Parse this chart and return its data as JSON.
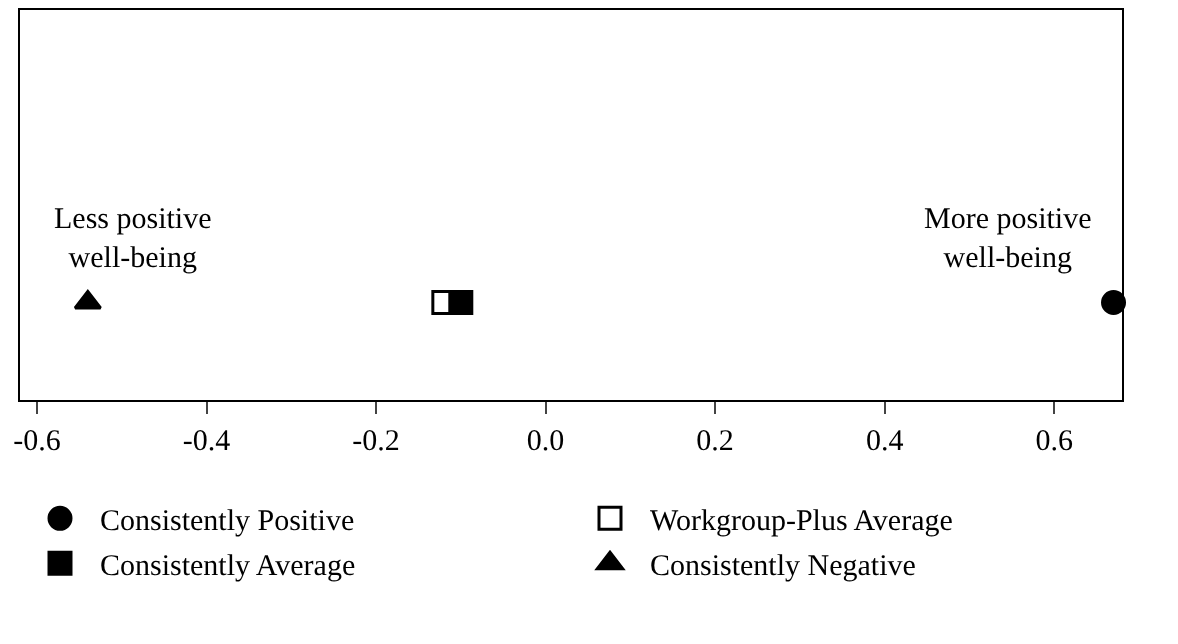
{
  "chart_data": {
    "type": "scatter",
    "orientation": "horizontal",
    "categories": [
      null
    ],
    "tick_labels": "x",
    "xlim": [
      -0.62,
      0.68
    ],
    "xticks": [
      {
        "value": -0.6,
        "label": "-0.6"
      },
      {
        "value": -0.4,
        "label": "-0.4"
      },
      {
        "value": -0.2,
        "label": "-0.2"
      },
      {
        "value": 0,
        "label": "0.0"
      },
      {
        "value": 0.2,
        "label": "0.2"
      },
      {
        "value": 0.4,
        "label": "0.4"
      },
      {
        "value": 0.6,
        "label": "0.6"
      }
    ],
    "legend": "bottom",
    "series": [
      {
        "name": "Consistently Positive",
        "color": "#000000",
        "marker": "circle",
        "values": [
          0.67
        ]
      },
      {
        "name": "Workgroup-Plus Average",
        "color": "#ffffff",
        "marker": "square",
        "values": [
          -0.12
        ]
      },
      {
        "name": "Consistently Average",
        "color": "#000000",
        "marker": "square",
        "values": [
          -0.1
        ]
      },
      {
        "name": "Consistently Negative",
        "color": "#000000",
        "marker": "triangle",
        "values": [
          -0.54
        ]
      }
    ],
    "annotations": [
      "Less positive\nwell-being",
      "More positive\nwell-being"
    ]
  }
}
